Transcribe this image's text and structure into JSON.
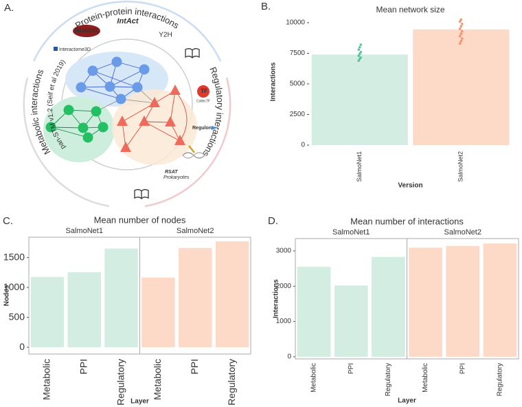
{
  "diagram": {
    "label": "A.",
    "ppi_title": "Protein-protein interactions",
    "regulatory_title": "Regulatory interactions",
    "metabolic_title": "Metabolic interactions",
    "metabolic_source": "pan-STM v1.2 (Seif et al 2019)",
    "logos": {
      "biogrid": "BioGRID",
      "intact": "IntAct",
      "y2h": "Y2H",
      "interactome3d": "Interactome3D",
      "tf": "TF",
      "collectf": "CollecTF",
      "regulon": "Regulon",
      "rsat": "RSAT",
      "prokaryotes": "Prokaryotes"
    }
  },
  "chart_data": [
    {
      "type": "bar",
      "label": "B.",
      "title": "Mean network size",
      "x_label": "Version",
      "y_label": "Interactions",
      "categories": [
        "SalmoNet1",
        "SalmoNet2"
      ],
      "values": [
        7400,
        9450
      ],
      "colors": [
        "#d4ede3",
        "#fdd9c8"
      ],
      "point_colors": [
        "#5cc39c",
        "#f5936a"
      ],
      "points": [
        [
          6900,
          7050,
          7150,
          7300,
          7450,
          7600,
          7800,
          8000,
          8200
        ],
        [
          8300,
          8500,
          8700,
          8900,
          9100,
          9300,
          9500,
          9700,
          9900,
          10100,
          10250
        ]
      ],
      "ylim": [
        -110,
        10450
      ],
      "yticks": [
        0,
        2500,
        5000,
        7500,
        10000
      ]
    },
    {
      "type": "bar",
      "label": "C.",
      "title": "Mean number of nodes",
      "x_label": "Layer",
      "y_label": "Nodes",
      "categories": [
        "Metabolic",
        "PPI",
        "Regulatory"
      ],
      "series": [
        {
          "name": "SalmoNet1",
          "color": "#d4ede3",
          "values": [
            1175,
            1255,
            1650
          ]
        },
        {
          "name": "SalmoNet2",
          "color": "#fdd9c8",
          "values": [
            1165,
            1660,
            1770
          ]
        }
      ],
      "ylim": [
        -114,
        1840
      ],
      "yticks": [
        0,
        500,
        1000,
        1500
      ]
    },
    {
      "type": "bar",
      "label": "D.",
      "title": "Mean number of interactions",
      "x_label": "Layer",
      "y_label": "Interactions",
      "categories": [
        "Metabolic",
        "PPI",
        "Regulatory"
      ],
      "series": [
        {
          "name": "SalmoNet1",
          "color": "#d4ede3",
          "values": [
            2550,
            2020,
            2830
          ]
        },
        {
          "name": "SalmoNet2",
          "color": "#fdd9c8",
          "values": [
            3090,
            3140,
            3210
          ]
        }
      ],
      "ylim": [
        -60,
        3350
      ],
      "yticks": [
        0,
        1000,
        2000,
        3000
      ]
    }
  ]
}
